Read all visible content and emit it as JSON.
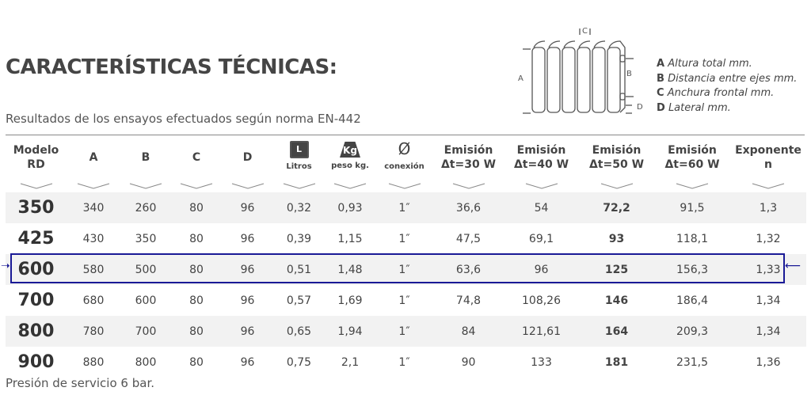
{
  "title": "CARACTERÍSTICAS TÉCNICAS:",
  "subtitle": "Resultados de los ensayos efectuados según norma EN-442",
  "diagram": {
    "labels": {
      "a": "A",
      "b": "B",
      "c": "C",
      "d": "D"
    }
  },
  "legend": [
    {
      "key": "A",
      "text": "Altura total mm."
    },
    {
      "key": "B",
      "text": "Distancia entre ejes mm."
    },
    {
      "key": "C",
      "text": "Anchura frontal mm."
    },
    {
      "key": "D",
      "text": "Lateral mm."
    }
  ],
  "headers": {
    "modelo1": "Modelo",
    "modelo2": "RD",
    "a": "A",
    "b": "B",
    "c": "C",
    "d": "D",
    "litros_icon": "L",
    "litros": "Litros",
    "peso_icon": "Kg",
    "peso": "peso kg.",
    "conexion_icon": "Ø",
    "conexion": "conexión",
    "e30a": "Emisión",
    "e30b": "Δt=30 W",
    "e40a": "Emisión",
    "e40b": "Δt=40 W",
    "e50a": "Emisión",
    "e50b": "Δt=50 W",
    "e60a": "Emisión",
    "e60b": "Δt=60 W",
    "expa": "Exponente",
    "expb": "n"
  },
  "rows": [
    [
      "350",
      "340",
      "260",
      "80",
      "96",
      "0,32",
      "0,93",
      "1″",
      "36,6",
      "54",
      "72,2",
      "91,5",
      "1,3"
    ],
    [
      "425",
      "430",
      "350",
      "80",
      "96",
      "0,39",
      "1,15",
      "1″",
      "47,5",
      "69,1",
      "93",
      "118,1",
      "1,32"
    ],
    [
      "600",
      "580",
      "500",
      "80",
      "96",
      "0,51",
      "1,48",
      "1″",
      "63,6",
      "96",
      "125",
      "156,3",
      "1,33"
    ],
    [
      "700",
      "680",
      "600",
      "80",
      "96",
      "0,57",
      "1,69",
      "1″",
      "74,8",
      "108,26",
      "146",
      "186,4",
      "1,34"
    ],
    [
      "800",
      "780",
      "700",
      "80",
      "96",
      "0,65",
      "1,94",
      "1″",
      "84",
      "121,61",
      "164",
      "209,3",
      "1,34"
    ],
    [
      "900",
      "880",
      "800",
      "80",
      "96",
      "0,75",
      "2,1",
      "1″",
      "90",
      "133",
      "181",
      "231,5",
      "1,36"
    ]
  ],
  "highlighted_row": "600",
  "highlight_color": "#1a1a96",
  "footer": "Presión de servicio 6 bar."
}
